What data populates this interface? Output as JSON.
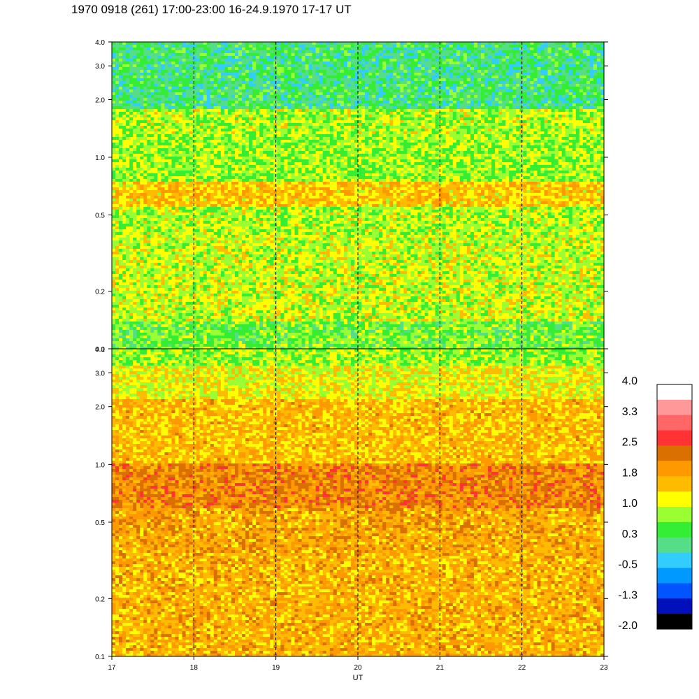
{
  "title": "1970 0918 (261) 17:00-23:00 16-24.9.1970  17-17 UT",
  "chart_data": {
    "type": "heatmap",
    "panels": [
      {
        "name": "upper",
        "y_scale": "log",
        "ylim": [
          0.1,
          4.0
        ],
        "ytick_labels": [
          "0.1",
          "0.2",
          "0.5",
          "1.0",
          "2.0",
          "3.0",
          "4.0"
        ],
        "ytick_values": [
          0.1,
          0.2,
          0.5,
          1.0,
          2.0,
          3.0,
          4.0
        ],
        "bands": [
          {
            "y_range": [
              0.1,
              0.14
            ],
            "level": 0.6
          },
          {
            "y_range": [
              0.14,
              0.4
            ],
            "level": 1.0
          },
          {
            "y_range": [
              0.4,
              0.55
            ],
            "level": 0.9
          },
          {
            "y_range": [
              0.55,
              0.75
            ],
            "level": 1.5
          },
          {
            "y_range": [
              0.75,
              1.3
            ],
            "level": 0.8
          },
          {
            "y_range": [
              1.3,
              1.8
            ],
            "level": 0.9
          },
          {
            "y_range": [
              1.8,
              4.0
            ],
            "level": 0.2
          }
        ]
      },
      {
        "name": "lower",
        "y_scale": "log",
        "ylim": [
          0.1,
          4.0
        ],
        "ytick_labels": [
          "0.1",
          "0.2",
          "0.5",
          "1.0",
          "2.0",
          "3.0",
          "4.0"
        ],
        "ytick_values": [
          0.1,
          0.2,
          0.5,
          1.0,
          2.0,
          3.0,
          4.0
        ],
        "bands": [
          {
            "y_range": [
              0.1,
              0.35
            ],
            "level": 1.7
          },
          {
            "y_range": [
              0.35,
              0.6
            ],
            "level": 1.8
          },
          {
            "y_range": [
              0.6,
              1.0
            ],
            "level": 2.1
          },
          {
            "y_range": [
              1.0,
              2.2
            ],
            "level": 1.6
          },
          {
            "y_range": [
              2.2,
              3.3
            ],
            "level": 1.2
          },
          {
            "y_range": [
              3.3,
              4.0
            ],
            "level": 0.8
          }
        ]
      }
    ],
    "x": {
      "label": "UT",
      "xlim": [
        17,
        23
      ],
      "tick_values": [
        17,
        18,
        19,
        20,
        21,
        22,
        23
      ],
      "tick_labels": [
        "17",
        "18",
        "19",
        "20",
        "21",
        "22",
        "23"
      ],
      "dashed_hour_lines": [
        18,
        19,
        20,
        21,
        22
      ]
    },
    "colorbar": {
      "labels": [
        "4.0",
        "3.3",
        "2.5",
        "1.8",
        "1.0",
        "0.3",
        "-0.5",
        "-1.3",
        "-2.0"
      ],
      "colors": [
        "#ffffff",
        "#ff9999",
        "#ff6666",
        "#ff3333",
        "#d97000",
        "#ff9900",
        "#ffbb00",
        "#ffff00",
        "#99ff33",
        "#33ee33",
        "#55dd88",
        "#33ccff",
        "#0099ff",
        "#0055ff",
        "#0011bb",
        "#000000"
      ],
      "range": [
        -2.0,
        4.0
      ]
    },
    "grid": "dashed vertical lines at each hour"
  }
}
